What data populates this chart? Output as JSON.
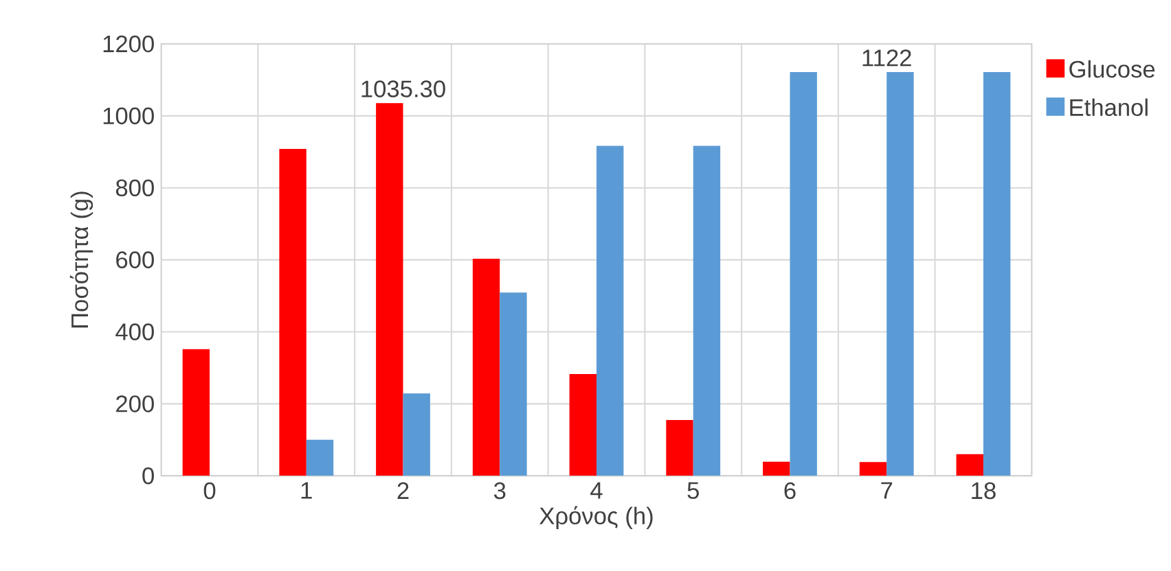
{
  "chart_data": {
    "type": "bar",
    "xlabel": "Χρόνος (h)",
    "ylabel": "Ποσότητα (g)",
    "categories": [
      "0",
      "1",
      "2",
      "3",
      "4",
      "5",
      "6",
      "7",
      "18"
    ],
    "series": [
      {
        "name": "Glucose",
        "color": "#ff0000",
        "values": [
          352,
          908,
          1035.3,
          603,
          283,
          155,
          39,
          38,
          60
        ]
      },
      {
        "name": "Ethanol",
        "color": "#5b9bd5",
        "values": [
          0,
          100,
          229,
          509,
          917,
          917,
          1122,
          1122,
          1122
        ]
      }
    ],
    "annotations": [
      {
        "text": "1035.30",
        "x": "2",
        "y": 1035.3
      },
      {
        "text": "1122",
        "x": "7",
        "y": 1122
      }
    ],
    "ylim": [
      0,
      1200
    ],
    "yticks": [
      0,
      200,
      400,
      600,
      800,
      1000,
      1200
    ],
    "grid": true,
    "legend": "right"
  }
}
